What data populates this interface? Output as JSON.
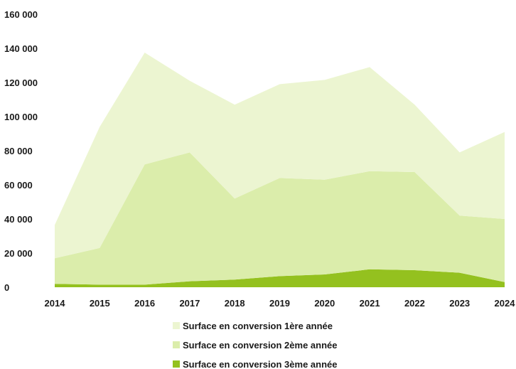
{
  "chart_data": {
    "type": "area",
    "stacked": true,
    "title": "",
    "xlabel": "",
    "ylabel": "",
    "x": [
      "2014",
      "2015",
      "2016",
      "2017",
      "2018",
      "2019",
      "2020",
      "2021",
      "2022",
      "2023",
      "2024"
    ],
    "ylim": [
      0,
      160000
    ],
    "yticks": [
      0,
      20000,
      40000,
      60000,
      80000,
      100000,
      120000,
      140000,
      160000
    ],
    "ytick_labels": [
      "0",
      "20 000",
      "40 000",
      "60 000",
      "80 000",
      "100 000",
      "120 000",
      "140 000",
      "160 000"
    ],
    "grid": false,
    "legend_position": "bottom",
    "series": [
      {
        "name": "Surface en conversion 3ème année",
        "color": "#94c11f",
        "values": [
          2000,
          1500,
          1500,
          3500,
          4500,
          6500,
          7500,
          10500,
          10000,
          8500,
          3000
        ]
      },
      {
        "name": "Surface en conversion 2ème année",
        "color": "#dbedab",
        "values": [
          15000,
          21500,
          70500,
          75500,
          47500,
          57500,
          55500,
          57500,
          57500,
          33500,
          37000
        ]
      },
      {
        "name": "Surface en conversion 1ère année",
        "color": "#ecf5d1",
        "values": [
          19500,
          71000,
          65500,
          42000,
          55000,
          55000,
          58500,
          61000,
          39500,
          37000,
          51000
        ]
      }
    ],
    "legend_order": [
      "Surface en conversion 1ère année",
      "Surface en conversion 2ème année",
      "Surface en conversion 3ème année"
    ]
  }
}
